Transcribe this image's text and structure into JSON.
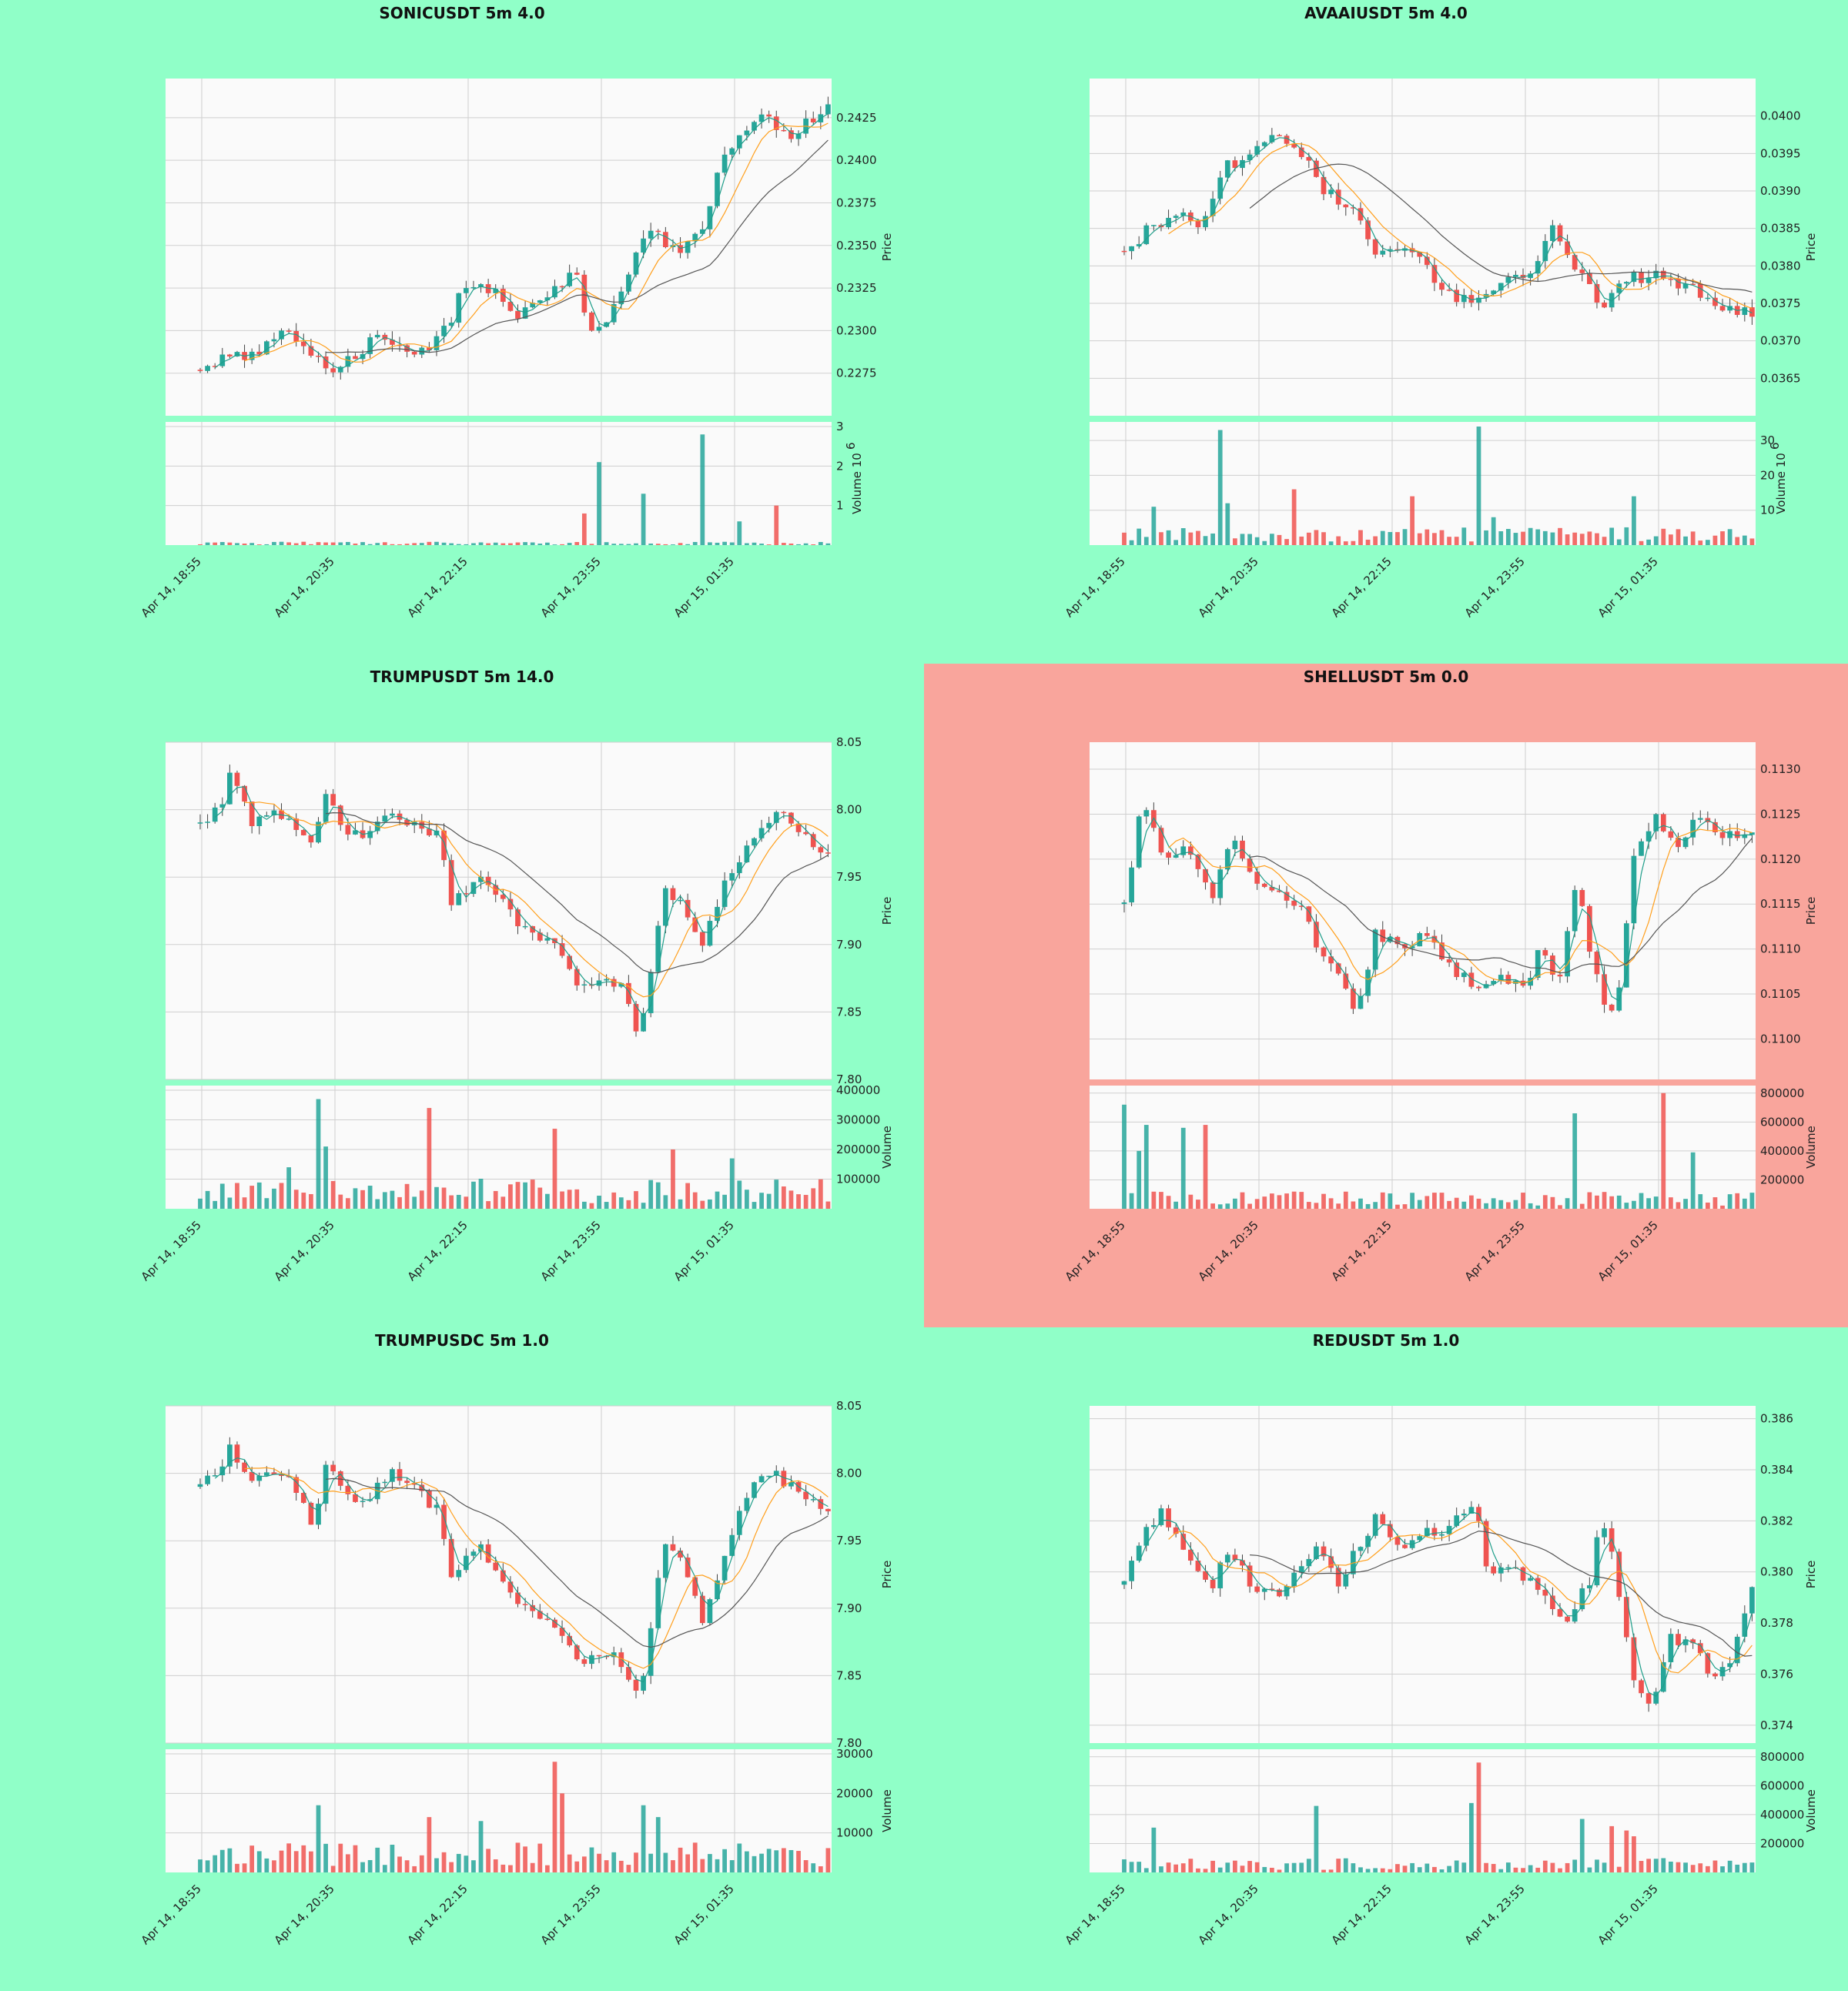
{
  "colors": {
    "figure_bg": "#90ffc8",
    "alert_bg": "#f9a59c",
    "plot_bg": "#fafafa",
    "up": "#26a69a",
    "down": "#ef5350",
    "ma_fast": "#1f9e8a",
    "ma_mid": "#ff9f1c",
    "ma_slow": "#555555"
  },
  "x_ticks": [
    "Apr 14, 18:55",
    "Apr 14, 20:35",
    "Apr 14, 22:15",
    "Apr 14, 23:55",
    "Apr 15, 01:35"
  ],
  "chart_data": [
    {
      "type": "candlestick",
      "title": "SONICUSDT 5m 4.0",
      "highlight": false,
      "ylabel": "Price",
      "vol_label": "Volume",
      "vol_exp": "6",
      "price_ticks": [
        "0.2275",
        "0.2300",
        "0.2325",
        "0.2350",
        "0.2375",
        "0.2400",
        "0.2425"
      ],
      "vol_ticks": [
        "1",
        "2",
        "3"
      ],
      "ylim": [
        0.225,
        0.2448
      ],
      "vol_max": 3.0,
      "anchors": [
        [
          0,
          0.2277
        ],
        [
          4,
          0.2285
        ],
        [
          10,
          0.2288
        ],
        [
          14,
          0.2303
        ],
        [
          18,
          0.2285
        ],
        [
          21,
          0.2278
        ],
        [
          26,
          0.2288
        ],
        [
          28,
          0.23
        ],
        [
          31,
          0.2288
        ],
        [
          35,
          0.2285
        ],
        [
          39,
          0.23
        ],
        [
          42,
          0.2325
        ],
        [
          47,
          0.2322
        ],
        [
          51,
          0.2308
        ],
        [
          56,
          0.2325
        ],
        [
          60,
          0.2335
        ],
        [
          62,
          0.23
        ],
        [
          65,
          0.2303
        ],
        [
          68,
          0.2335
        ],
        [
          72,
          0.236
        ],
        [
          76,
          0.2345
        ],
        [
          80,
          0.236
        ],
        [
          83,
          0.24
        ],
        [
          86,
          0.2415
        ],
        [
          90,
          0.2425
        ],
        [
          94,
          0.2415
        ],
        [
          98,
          0.2425
        ],
        [
          100,
          0.243
        ]
      ],
      "vol_base": 0.05,
      "vol_spikes": [
        [
          63,
          2.1
        ],
        [
          70,
          1.3
        ],
        [
          80,
          2.8
        ],
        [
          64,
          1.4
        ],
        [
          92,
          1.0
        ],
        [
          61,
          0.8
        ],
        [
          86,
          0.6
        ]
      ]
    },
    {
      "type": "candlestick",
      "title": "AVAAIUSDT 5m 4.0",
      "highlight": false,
      "ylabel": "Price",
      "vol_label": "Volume",
      "vol_exp": "6",
      "price_ticks": [
        "0.0365",
        "0.0370",
        "0.0375",
        "0.0380",
        "0.0385",
        "0.0390",
        "0.0395",
        "0.0400"
      ],
      "vol_ticks": [
        "10",
        "20",
        "30"
      ],
      "ylim": [
        0.036,
        0.0405
      ],
      "vol_max": 34,
      "anchors": [
        [
          0,
          0.0382
        ],
        [
          4,
          0.0385
        ],
        [
          8,
          0.0387
        ],
        [
          12,
          0.0385
        ],
        [
          16,
          0.0393
        ],
        [
          20,
          0.0395
        ],
        [
          24,
          0.0398
        ],
        [
          28,
          0.0395
        ],
        [
          32,
          0.039
        ],
        [
          36,
          0.0388
        ],
        [
          40,
          0.0382
        ],
        [
          44,
          0.0383
        ],
        [
          48,
          0.038
        ],
        [
          52,
          0.0376
        ],
        [
          56,
          0.0375
        ],
        [
          60,
          0.0378
        ],
        [
          64,
          0.0378
        ],
        [
          68,
          0.0385
        ],
        [
          72,
          0.038
        ],
        [
          76,
          0.0374
        ],
        [
          80,
          0.0378
        ],
        [
          84,
          0.0379
        ],
        [
          88,
          0.0378
        ],
        [
          92,
          0.0376
        ],
        [
          96,
          0.0374
        ]
      ],
      "vol_base": 3,
      "vol_spikes": [
        [
          15,
          33
        ],
        [
          56,
          34
        ],
        [
          27,
          16
        ],
        [
          46,
          14
        ],
        [
          81,
          14
        ],
        [
          16,
          12
        ],
        [
          5,
          11
        ],
        [
          59,
          8
        ]
      ]
    },
    {
      "type": "candlestick",
      "title": "TRUMPUSDT 5m 14.0",
      "highlight": false,
      "ylabel": "Price",
      "vol_label": "Volume",
      "vol_exp": "",
      "price_ticks": [
        "7.80",
        "7.85",
        "7.90",
        "7.95",
        "8.00",
        "8.05"
      ],
      "vol_ticks": [
        "100000",
        "200000",
        "300000",
        "400000"
      ],
      "ylim": [
        7.8,
        8.05
      ],
      "vol_max": 400000,
      "anchors": [
        [
          0,
          7.99
        ],
        [
          3,
          8.0
        ],
        [
          5,
          8.03
        ],
        [
          8,
          7.99
        ],
        [
          12,
          8.0
        ],
        [
          15,
          7.99
        ],
        [
          18,
          7.97
        ],
        [
          20,
          8.01
        ],
        [
          22,
          7.99
        ],
        [
          26,
          7.98
        ],
        [
          30,
          8.0
        ],
        [
          34,
          7.99
        ],
        [
          38,
          7.98
        ],
        [
          40,
          7.93
        ],
        [
          44,
          7.95
        ],
        [
          48,
          7.93
        ],
        [
          52,
          7.91
        ],
        [
          56,
          7.9
        ],
        [
          60,
          7.87
        ],
        [
          64,
          7.87
        ],
        [
          67,
          7.87
        ],
        [
          70,
          7.83
        ],
        [
          74,
          7.94
        ],
        [
          77,
          7.93
        ],
        [
          80,
          7.9
        ],
        [
          84,
          7.95
        ],
        [
          88,
          7.98
        ],
        [
          92,
          8.0
        ],
        [
          96,
          7.98
        ],
        [
          100,
          7.97
        ]
      ],
      "vol_base": 60000,
      "vol_spikes": [
        [
          19,
          370000
        ],
        [
          36,
          340000
        ],
        [
          20,
          210000
        ],
        [
          57,
          270000
        ],
        [
          75,
          200000
        ],
        [
          85,
          170000
        ],
        [
          14,
          140000
        ]
      ]
    },
    {
      "type": "candlestick",
      "title": "SHELLUSDT 5m 0.0",
      "highlight": true,
      "ylabel": "Price",
      "vol_label": "Volume",
      "vol_exp": "",
      "price_ticks": [
        "0.1100",
        "0.1105",
        "0.1110",
        "0.1115",
        "0.1120",
        "0.1125",
        "0.1130"
      ],
      "vol_ticks": [
        "200000",
        "400000",
        "600000",
        "800000"
      ],
      "ylim": [
        0.10955,
        0.1133
      ],
      "vol_max": 820000,
      "anchors": [
        [
          0,
          0.1115
        ],
        [
          3,
          0.1127
        ],
        [
          6,
          0.112
        ],
        [
          10,
          0.1122
        ],
        [
          14,
          0.1115
        ],
        [
          17,
          0.1123
        ],
        [
          20,
          0.1118
        ],
        [
          24,
          0.1116
        ],
        [
          28,
          0.1115
        ],
        [
          31,
          0.111
        ],
        [
          34,
          0.1108
        ],
        [
          37,
          0.1102
        ],
        [
          40,
          0.1112
        ],
        [
          44,
          0.111
        ],
        [
          48,
          0.1112
        ],
        [
          52,
          0.1108
        ],
        [
          56,
          0.1106
        ],
        [
          60,
          0.1107
        ],
        [
          64,
          0.1105
        ],
        [
          66,
          0.111
        ],
        [
          69,
          0.1106
        ],
        [
          72,
          0.1118
        ],
        [
          74,
          0.111
        ],
        [
          77,
          0.1102
        ],
        [
          79,
          0.1106
        ],
        [
          81,
          0.112
        ],
        [
          85,
          0.1125
        ],
        [
          88,
          0.1121
        ],
        [
          91,
          0.1125
        ],
        [
          95,
          0.1122
        ],
        [
          97,
          0.1123
        ]
      ],
      "vol_base": 70000,
      "vol_spikes": [
        [
          0,
          720000
        ],
        [
          4,
          580000
        ],
        [
          9,
          560000
        ],
        [
          13,
          580000
        ],
        [
          72,
          660000
        ],
        [
          86,
          800000
        ],
        [
          90,
          390000
        ],
        [
          2,
          400000
        ]
      ]
    },
    {
      "type": "candlestick",
      "title": "TRUMPUSDC 5m 1.0",
      "highlight": false,
      "ylabel": "Price",
      "vol_label": "Volume",
      "vol_exp": "",
      "price_ticks": [
        "7.80",
        "7.85",
        "7.90",
        "7.95",
        "8.00",
        "8.05"
      ],
      "vol_ticks": [
        "10000",
        "20000",
        "30000"
      ],
      "ylim": [
        7.8,
        8.05
      ],
      "vol_max": 30000,
      "anchors": [
        [
          0,
          7.99
        ],
        [
          3,
          8.0
        ],
        [
          5,
          8.02
        ],
        [
          8,
          7.99
        ],
        [
          12,
          8.0
        ],
        [
          15,
          7.99
        ],
        [
          18,
          7.96
        ],
        [
          20,
          8.01
        ],
        [
          22,
          7.99
        ],
        [
          26,
          7.98
        ],
        [
          30,
          8.0
        ],
        [
          34,
          7.99
        ],
        [
          38,
          7.97
        ],
        [
          40,
          7.92
        ],
        [
          44,
          7.95
        ],
        [
          48,
          7.92
        ],
        [
          52,
          7.9
        ],
        [
          56,
          7.89
        ],
        [
          60,
          7.86
        ],
        [
          64,
          7.87
        ],
        [
          67,
          7.86
        ],
        [
          70,
          7.83
        ],
        [
          74,
          7.95
        ],
        [
          77,
          7.93
        ],
        [
          80,
          7.89
        ],
        [
          84,
          7.95
        ],
        [
          88,
          7.99
        ],
        [
          92,
          8.0
        ],
        [
          96,
          7.98
        ],
        [
          100,
          7.97
        ]
      ],
      "vol_base": 4500,
      "vol_spikes": [
        [
          57,
          28000
        ],
        [
          19,
          17000
        ],
        [
          36,
          14000
        ],
        [
          45,
          13000
        ],
        [
          70,
          17000
        ],
        [
          73,
          14000
        ],
        [
          58,
          20000
        ]
      ]
    },
    {
      "type": "candlestick",
      "title": "REDUSDT 5m 1.0",
      "highlight": false,
      "ylabel": "Price",
      "vol_label": "Volume",
      "vol_exp": "",
      "price_ticks": [
        "0.374",
        "0.376",
        "0.378",
        "0.380",
        "0.382",
        "0.384",
        "0.386"
      ],
      "vol_ticks": [
        "200000",
        "400000",
        "600000",
        "800000"
      ],
      "ylim": [
        0.3733,
        0.3865
      ],
      "vol_max": 820000,
      "anchors": [
        [
          0,
          0.3795
        ],
        [
          3,
          0.3815
        ],
        [
          6,
          0.3825
        ],
        [
          10,
          0.3805
        ],
        [
          14,
          0.3795
        ],
        [
          17,
          0.381
        ],
        [
          20,
          0.3795
        ],
        [
          24,
          0.379
        ],
        [
          28,
          0.38
        ],
        [
          31,
          0.381
        ],
        [
          34,
          0.3795
        ],
        [
          37,
          0.381
        ],
        [
          40,
          0.382
        ],
        [
          44,
          0.381
        ],
        [
          48,
          0.3815
        ],
        [
          52,
          0.3818
        ],
        [
          56,
          0.3825
        ],
        [
          58,
          0.38
        ],
        [
          62,
          0.38
        ],
        [
          66,
          0.3795
        ],
        [
          70,
          0.378
        ],
        [
          74,
          0.3795
        ],
        [
          76,
          0.3825
        ],
        [
          79,
          0.379
        ],
        [
          81,
          0.376
        ],
        [
          84,
          0.3745
        ],
        [
          87,
          0.3775
        ],
        [
          90,
          0.3772
        ],
        [
          93,
          0.3762
        ],
        [
          96,
          0.376
        ],
        [
          98,
          0.3775
        ],
        [
          100,
          0.3792
        ]
      ],
      "vol_base": 60000,
      "vol_spikes": [
        [
          5,
          310000
        ],
        [
          30,
          460000
        ],
        [
          56,
          760000
        ],
        [
          55,
          480000
        ],
        [
          73,
          370000
        ],
        [
          78,
          320000
        ],
        [
          80,
          290000
        ],
        [
          81,
          250000
        ]
      ]
    }
  ]
}
